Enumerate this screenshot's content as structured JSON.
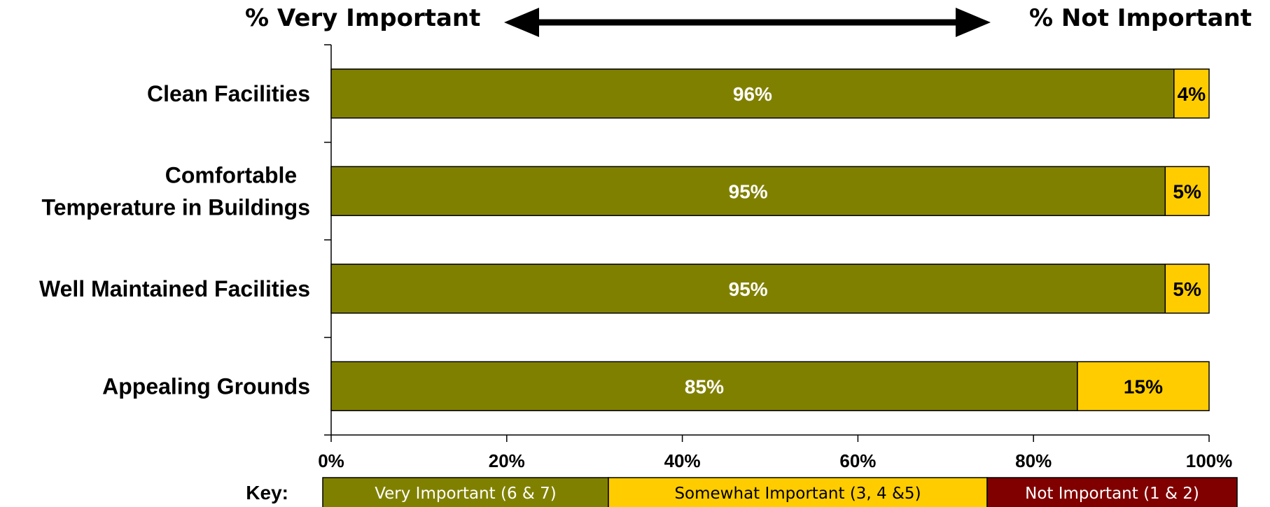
{
  "header": {
    "left_label": "% Very Important",
    "right_label": "% Not Important"
  },
  "chart_data": {
    "type": "bar",
    "orientation": "horizontal",
    "stacked": true,
    "categories": [
      "Clean Facilities",
      "Comfortable Temperature in Buildings",
      "Well Maintained Facilities",
      "Appealing Grounds"
    ],
    "series": [
      {
        "name": "Very Important (6 & 7)",
        "color": "#808000",
        "values": [
          96,
          95,
          95,
          85
        ],
        "labels": [
          "96%",
          "95%",
          "95%",
          "85%"
        ]
      },
      {
        "name": "Somewhat Important (3, 4 &5)",
        "color": "#FFCC00",
        "values": [
          4,
          5,
          5,
          15
        ],
        "labels": [
          "4%",
          "5%",
          "5%",
          "15%"
        ]
      },
      {
        "name": "Not Important (1 & 2)",
        "color": "#800000",
        "values": [
          0,
          0,
          0,
          0
        ],
        "labels": [
          "",
          "",
          "",
          ""
        ]
      }
    ],
    "xlim": [
      0,
      100
    ],
    "x_ticks": [
      0,
      20,
      40,
      60,
      80,
      100
    ],
    "x_tick_labels": [
      "0%",
      "20%",
      "40%",
      "60%",
      "80%",
      "100%"
    ],
    "grid": false,
    "legend": {
      "title": "Key:",
      "placement": "bottom",
      "entries": [
        "Very Important (6 & 7)",
        "Somewhat Important (3, 4 &5)",
        "Not Important (1 & 2)"
      ]
    }
  }
}
